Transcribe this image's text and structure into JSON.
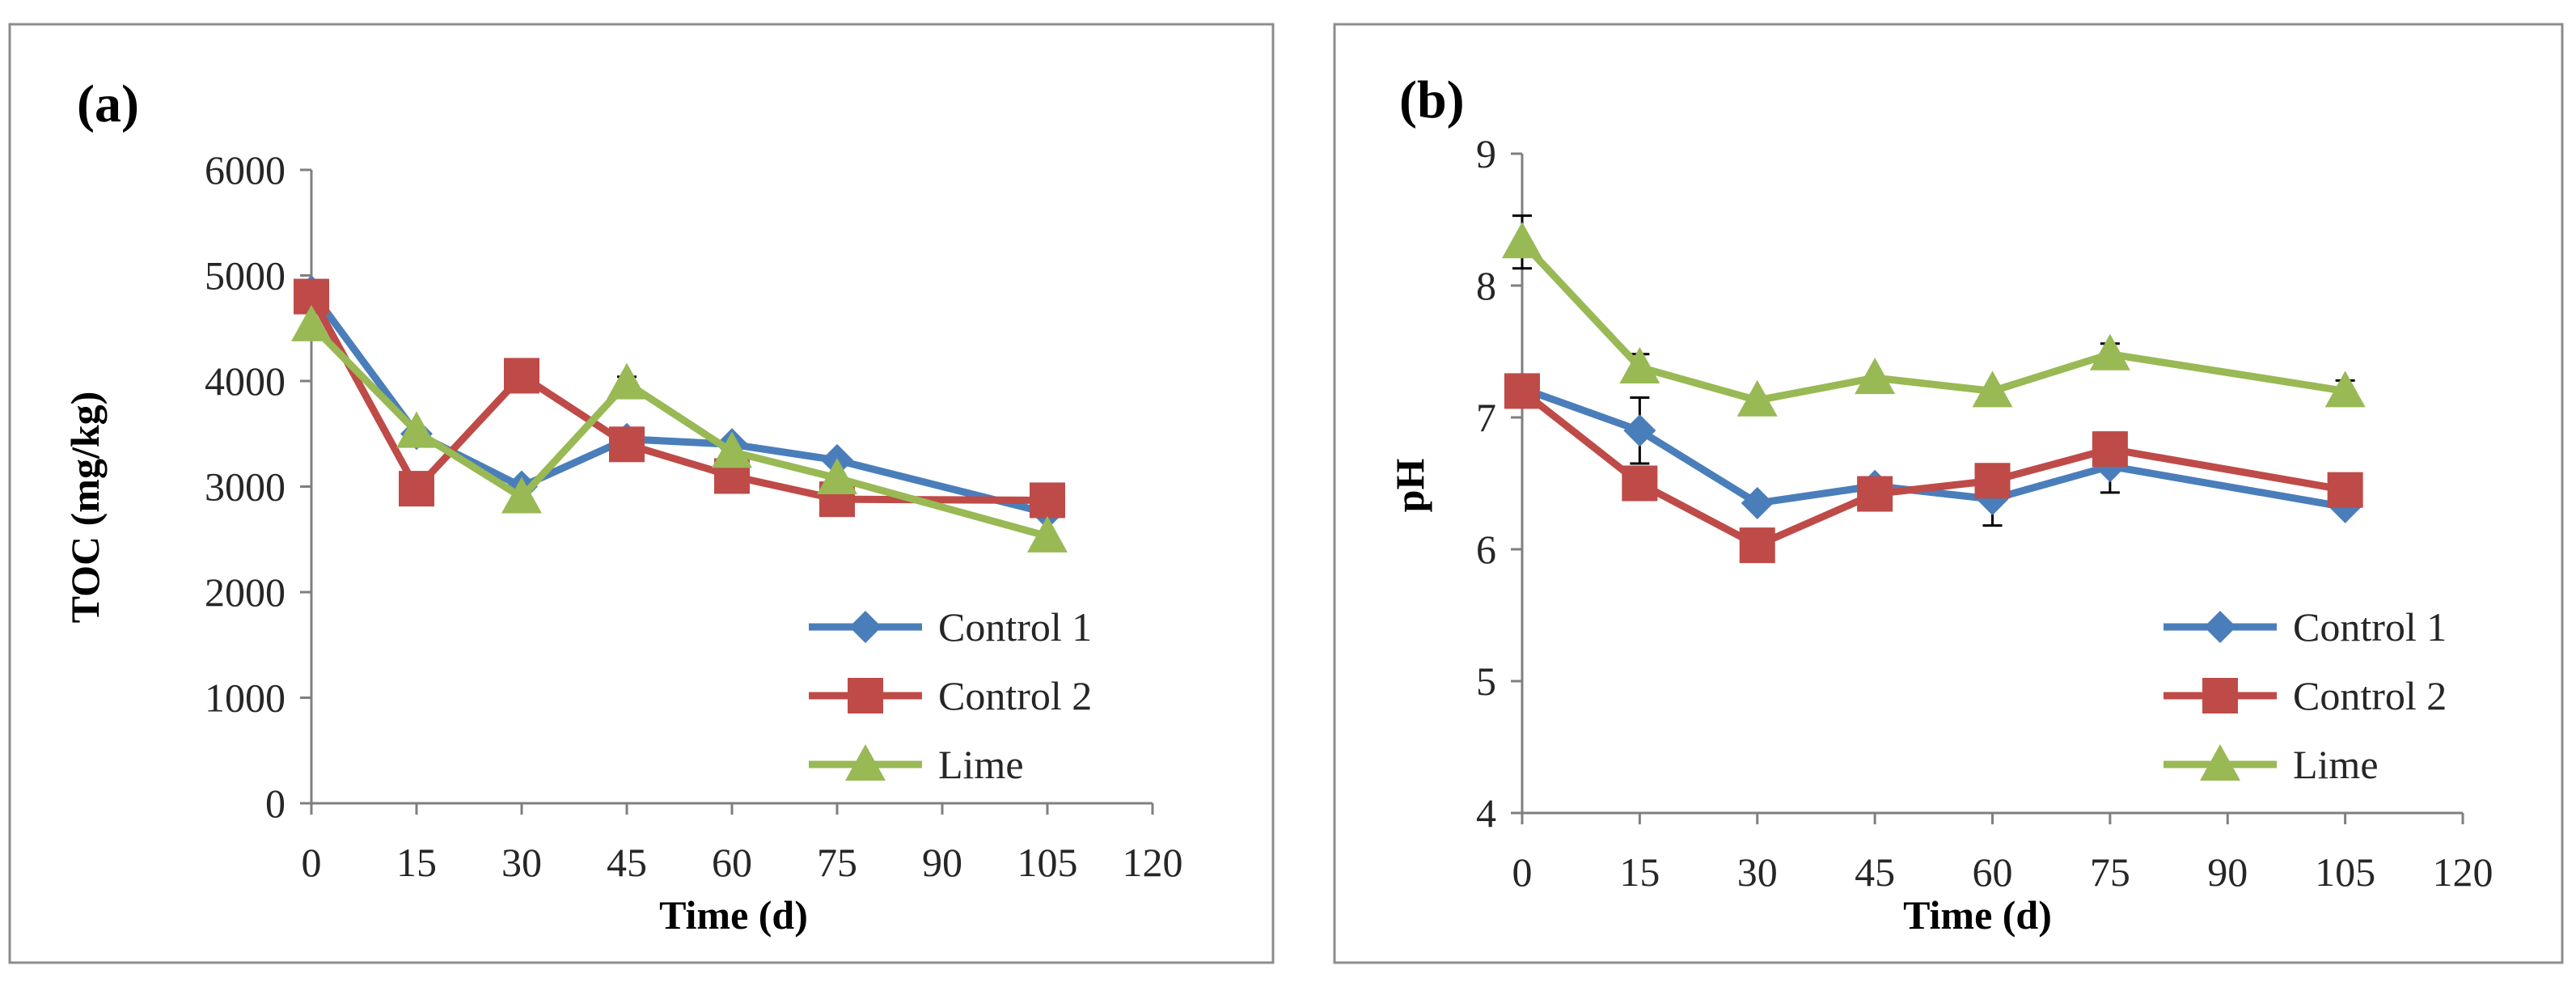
{
  "chart_data": [
    {
      "type": "line",
      "panel_label": "(a)",
      "xlabel": "Time (d)",
      "ylabel": "TOC (mg/kg)",
      "xlim": [
        0,
        120
      ],
      "ylim": [
        0,
        6000
      ],
      "xticks": [
        0,
        15,
        30,
        45,
        60,
        75,
        90,
        105,
        120
      ],
      "yticks": [
        0,
        1000,
        2000,
        3000,
        4000,
        5000,
        6000
      ],
      "x": [
        0,
        15,
        30,
        45,
        60,
        75,
        105
      ],
      "grid": false,
      "legend_position": "bottom-right",
      "series": [
        {
          "name": "Control 1",
          "color": "#4a7ebb",
          "marker": "diamond",
          "values": [
            4850,
            3500,
            3000,
            3450,
            3400,
            3250,
            2750
          ],
          "errors": [
            0,
            0,
            0,
            0,
            0,
            0,
            0
          ]
        },
        {
          "name": "Control 2",
          "color": "#be4b48",
          "marker": "square",
          "values": [
            4800,
            2980,
            4050,
            3400,
            3100,
            2880,
            2870
          ],
          "errors": [
            0,
            0,
            0,
            0,
            0,
            0,
            0
          ]
        },
        {
          "name": "Lime",
          "color": "#98b954",
          "marker": "triangle",
          "values": [
            4530,
            3520,
            2900,
            3980,
            3330,
            3080,
            2530
          ],
          "errors": [
            0,
            0,
            0,
            60,
            0,
            0,
            0
          ]
        }
      ]
    },
    {
      "type": "line",
      "panel_label": "(b)",
      "xlabel": "Time (d)",
      "ylabel": "pH",
      "xlim": [
        0,
        120
      ],
      "ylim": [
        4,
        9
      ],
      "xticks": [
        0,
        15,
        30,
        45,
        60,
        75,
        90,
        105,
        120
      ],
      "yticks": [
        4,
        5,
        6,
        7,
        8,
        9
      ],
      "x": [
        0,
        15,
        30,
        45,
        60,
        75,
        105
      ],
      "grid": false,
      "legend_position": "bottom-right",
      "series": [
        {
          "name": "Control 1",
          "color": "#4a7ebb",
          "marker": "diamond",
          "values": [
            7.22,
            6.9,
            6.35,
            6.48,
            6.38,
            6.63,
            6.32
          ],
          "errors": [
            0,
            0.25,
            0,
            0,
            0.2,
            0.2,
            0
          ]
        },
        {
          "name": "Control 2",
          "color": "#be4b48",
          "marker": "square",
          "values": [
            7.2,
            6.5,
            6.03,
            6.42,
            6.52,
            6.76,
            6.45
          ],
          "errors": [
            0,
            0,
            0,
            0,
            0,
            0,
            0
          ]
        },
        {
          "name": "Lime",
          "color": "#98b954",
          "marker": "triangle",
          "values": [
            8.33,
            7.38,
            7.13,
            7.3,
            7.2,
            7.48,
            7.2
          ],
          "errors": [
            0.2,
            0.1,
            0,
            0,
            0,
            0.08,
            0.08
          ]
        }
      ]
    }
  ]
}
